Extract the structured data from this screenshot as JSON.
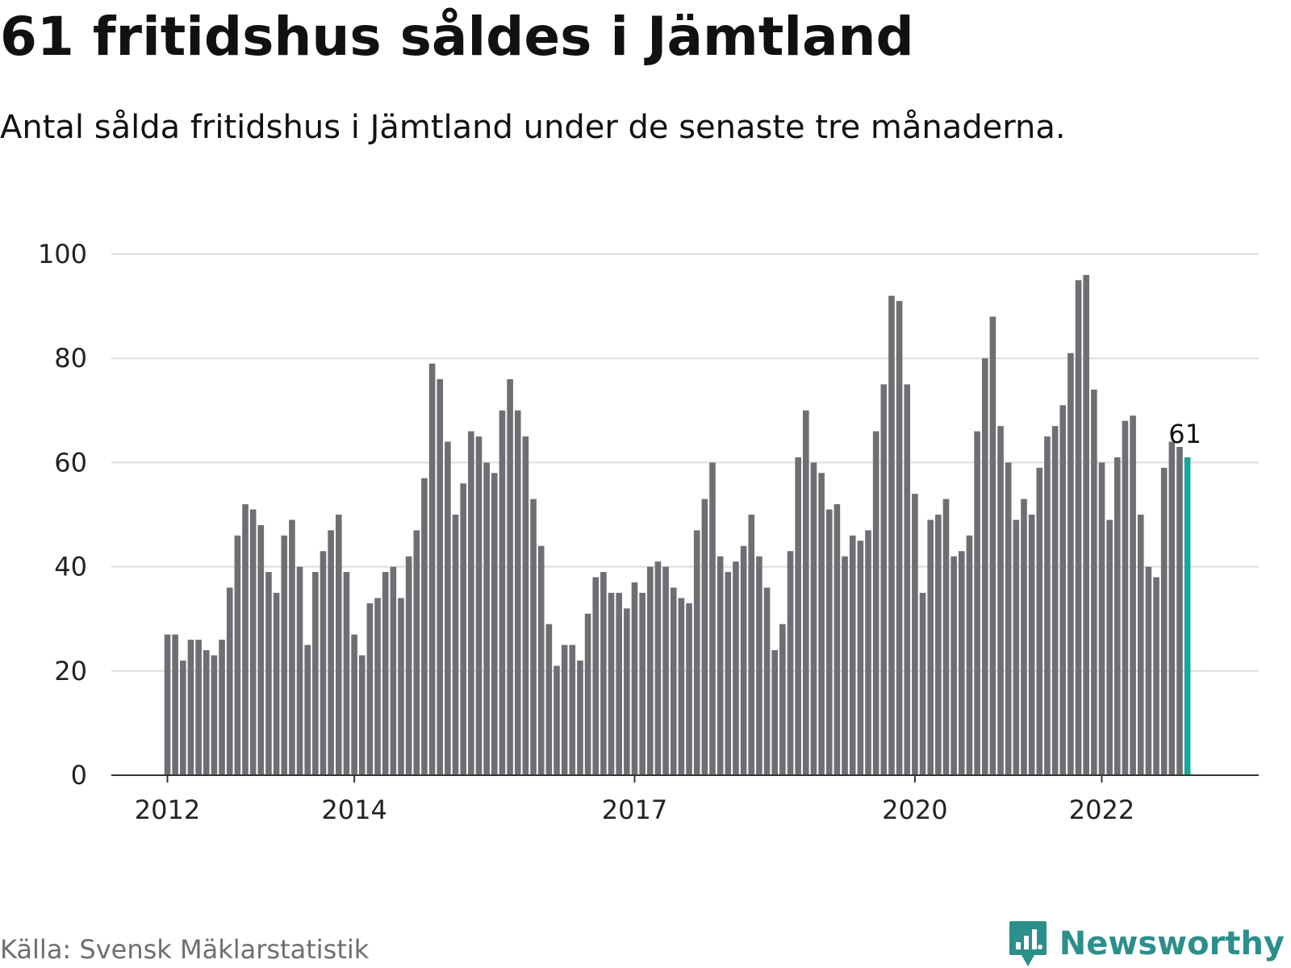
{
  "title": "61 fritidshus såldes i Jämtland",
  "subtitle": "Antal sålda fritidshus i Jämtland under de senaste tre månaderna.",
  "source": "Källa: Svensk Mäklarstatistik",
  "brand": {
    "name": "Newsworthy",
    "icon": "newsworthy-logo-icon",
    "color": "#2b8f8b"
  },
  "colors": {
    "bar": "#6e6e73",
    "highlight": "#1aa59d",
    "grid": "#dddddd",
    "axis": "#333333"
  },
  "chart_data": {
    "type": "bar",
    "title": "61 fritidshus såldes i Jämtland",
    "xlabel": "",
    "ylabel": "",
    "ylim": [
      0,
      100
    ],
    "yticks": [
      0,
      20,
      40,
      60,
      80,
      100
    ],
    "xticks": [
      {
        "label": "2012",
        "index": 0
      },
      {
        "label": "2014",
        "index": 24
      },
      {
        "label": "2017",
        "index": 60
      },
      {
        "label": "2020",
        "index": 96
      },
      {
        "label": "2022",
        "index": 120
      }
    ],
    "grid": true,
    "highlight_index": 131,
    "highlight_label": "61",
    "values": [
      27,
      27,
      22,
      26,
      26,
      24,
      23,
      26,
      36,
      46,
      52,
      51,
      48,
      39,
      35,
      46,
      49,
      40,
      25,
      39,
      43,
      47,
      50,
      39,
      27,
      23,
      33,
      34,
      39,
      40,
      34,
      42,
      47,
      57,
      79,
      76,
      64,
      50,
      56,
      66,
      65,
      60,
      58,
      70,
      76,
      70,
      65,
      53,
      44,
      29,
      21,
      25,
      25,
      22,
      31,
      38,
      39,
      35,
      35,
      32,
      37,
      35,
      40,
      41,
      40,
      36,
      34,
      33,
      47,
      53,
      60,
      42,
      39,
      41,
      44,
      50,
      42,
      36,
      24,
      29,
      43,
      61,
      70,
      60,
      58,
      51,
      52,
      42,
      46,
      45,
      47,
      66,
      75,
      92,
      91,
      75,
      54,
      35,
      49,
      50,
      53,
      42,
      43,
      46,
      66,
      80,
      88,
      67,
      60,
      49,
      53,
      50,
      59,
      65,
      67,
      71,
      81,
      95,
      96,
      74,
      60,
      49,
      61,
      68,
      69,
      50,
      40,
      38,
      59,
      64,
      63,
      61
    ]
  }
}
